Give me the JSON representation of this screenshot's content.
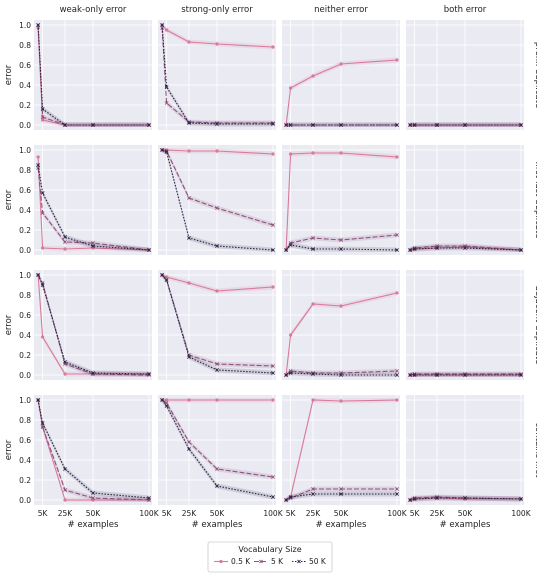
{
  "chart_data": {
    "type": "line",
    "x": [
      1000,
      5000,
      25000,
      50000,
      100000
    ],
    "xticks": [
      5000,
      25000,
      50000,
      100000
    ],
    "xtick_labels": [
      "5K",
      "25K",
      "50K",
      "100K"
    ],
    "xlabel": "# examples",
    "ylabel": "error",
    "yticks": [
      0.0,
      0.2,
      0.4,
      0.6,
      0.8,
      1.0
    ],
    "ytick_labels": [
      "0.0",
      "0.2",
      "0.4",
      "0.6",
      "0.8",
      "1.0"
    ],
    "xlim": [
      0,
      100000
    ],
    "ylim": [
      -0.05,
      1.05
    ],
    "grid": true,
    "columns": [
      "weak-only error",
      "strong-only error",
      "neither error",
      "both error"
    ],
    "rows": [
      "prefix duplicate",
      "first-last duplicate",
      "adjacent duplicate",
      "contains first"
    ],
    "legend": {
      "title": "Vocabulary Size",
      "placement": "bottom-center",
      "entries": [
        "0.5 K",
        "5 K",
        "50 K"
      ]
    },
    "series_style": [
      {
        "name": "0.5 K",
        "color": "#d87a9b",
        "dash": "",
        "marker": "circle"
      },
      {
        "name": "5 K",
        "color": "#8f527f",
        "dash": "5,2",
        "marker": "x"
      },
      {
        "name": "50 K",
        "color": "#2b2344",
        "dash": "1.5,1.5",
        "marker": "x"
      }
    ],
    "panels": [
      [
        {
          "series": [
            [
              0.97,
              0.05,
              0.0,
              0.0,
              0.0
            ],
            [
              1.0,
              0.08,
              0.0,
              0.0,
              0.0
            ],
            [
              1.0,
              0.16,
              0.0,
              0.0,
              0.0
            ]
          ]
        },
        {
          "series": [
            [
              1.0,
              0.95,
              0.83,
              0.81,
              0.78
            ],
            [
              0.97,
              0.22,
              0.03,
              0.02,
              0.02
            ],
            [
              1.0,
              0.38,
              0.02,
              0.01,
              0.01
            ]
          ]
        },
        {
          "series": [
            [
              0.0,
              0.37,
              0.49,
              0.61,
              0.65
            ],
            [
              0.0,
              0.0,
              0.0,
              0.0,
              0.0
            ],
            [
              0.0,
              0.0,
              0.0,
              0.0,
              0.0
            ]
          ]
        },
        {
          "series": [
            [
              0.0,
              0.0,
              0.0,
              0.0,
              0.0
            ],
            [
              0.0,
              0.0,
              0.0,
              0.0,
              0.0
            ],
            [
              0.0,
              0.0,
              0.0,
              0.0,
              0.0
            ]
          ]
        }
      ],
      [
        {
          "series": [
            [
              0.93,
              0.02,
              0.01,
              0.02,
              0.0
            ],
            [
              0.82,
              0.37,
              0.08,
              0.07,
              0.0
            ],
            [
              0.85,
              0.57,
              0.13,
              0.04,
              0.0
            ]
          ]
        },
        {
          "series": [
            [
              1.0,
              1.0,
              0.99,
              0.99,
              0.96
            ],
            [
              1.0,
              0.99,
              0.52,
              0.42,
              0.25
            ],
            [
              1.0,
              0.98,
              0.12,
              0.04,
              0.0
            ]
          ]
        },
        {
          "series": [
            [
              0.0,
              0.96,
              0.97,
              0.97,
              0.93
            ],
            [
              0.0,
              0.07,
              0.12,
              0.1,
              0.15
            ],
            [
              0.0,
              0.05,
              0.01,
              0.01,
              0.0
            ]
          ]
        },
        {
          "series": [
            [
              0.0,
              0.01,
              0.02,
              0.03,
              0.0
            ],
            [
              0.0,
              0.02,
              0.04,
              0.04,
              0.0
            ],
            [
              0.0,
              0.01,
              0.02,
              0.02,
              0.0
            ]
          ]
        }
      ],
      [
        {
          "series": [
            [
              1.0,
              0.38,
              0.01,
              0.01,
              0.01
            ],
            [
              1.0,
              0.92,
              0.11,
              0.01,
              0.0
            ],
            [
              1.0,
              0.9,
              0.13,
              0.02,
              0.01
            ]
          ]
        },
        {
          "series": [
            [
              1.0,
              0.98,
              0.92,
              0.84,
              0.88
            ],
            [
              1.0,
              0.95,
              0.2,
              0.11,
              0.09
            ],
            [
              1.0,
              0.95,
              0.18,
              0.05,
              0.02
            ]
          ]
        },
        {
          "series": [
            [
              0.0,
              0.4,
              0.71,
              0.69,
              0.82
            ],
            [
              0.0,
              0.04,
              0.02,
              0.02,
              0.04
            ],
            [
              0.0,
              0.02,
              0.01,
              0.0,
              0.0
            ]
          ]
        },
        {
          "series": [
            [
              0.0,
              0.0,
              0.0,
              0.0,
              0.0
            ],
            [
              0.0,
              0.01,
              0.01,
              0.01,
              0.01
            ],
            [
              0.0,
              0.0,
              0.0,
              0.0,
              0.0
            ]
          ]
        }
      ],
      [
        {
          "series": [
            [
              1.0,
              0.73,
              0.0,
              0.0,
              0.0
            ],
            [
              1.0,
              0.73,
              0.1,
              0.02,
              0.0
            ],
            [
              1.0,
              0.77,
              0.31,
              0.07,
              0.02
            ]
          ]
        },
        {
          "series": [
            [
              1.0,
              1.0,
              1.0,
              1.0,
              1.0
            ],
            [
              1.0,
              0.97,
              0.58,
              0.31,
              0.23
            ],
            [
              1.0,
              0.94,
              0.51,
              0.14,
              0.03
            ]
          ]
        },
        {
          "series": [
            [
              0.0,
              0.03,
              1.0,
              0.99,
              1.0
            ],
            [
              0.0,
              0.02,
              0.11,
              0.11,
              0.11
            ],
            [
              0.0,
              0.03,
              0.06,
              0.06,
              0.06
            ]
          ]
        },
        {
          "series": [
            [
              0.0,
              0.01,
              0.02,
              0.01,
              0.01
            ],
            [
              0.0,
              0.02,
              0.03,
              0.02,
              0.01
            ],
            [
              0.0,
              0.01,
              0.02,
              0.02,
              0.01
            ]
          ]
        }
      ]
    ]
  }
}
